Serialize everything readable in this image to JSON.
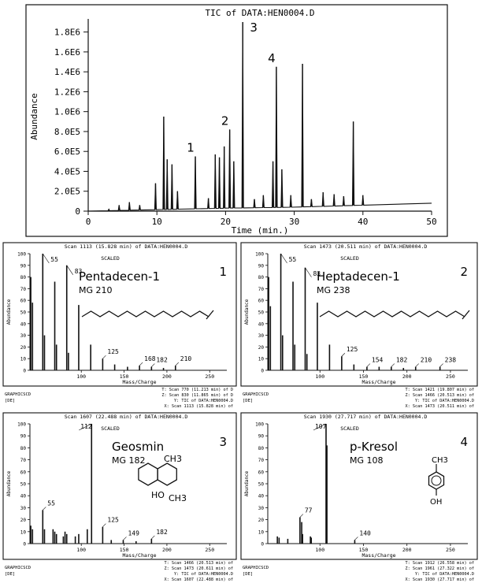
{
  "chart_data": [
    {
      "type": "line",
      "title": "TIC of DATA:HEN0004.D",
      "xlabel": "Time (min.)",
      "ylabel": "Abundance",
      "xlim": [
        0,
        50
      ],
      "ylim": [
        0,
        1900000
      ],
      "x_ticks": [
        "0",
        "10",
        "20",
        "30",
        "40",
        "50"
      ],
      "y_ticks": [
        "0",
        "2.0E5",
        "4.0E5",
        "6.0E5",
        "8.0E5",
        "1.0E6",
        "1.2E6",
        "1.4E6",
        "1.6E6",
        "1.8E6"
      ],
      "y_tick_values": [
        0,
        200000,
        400000,
        600000,
        800000,
        1000000,
        1200000,
        1400000,
        1600000,
        1800000
      ],
      "peaks": {
        "x": [
          3.0,
          4.5,
          6.0,
          7.5,
          9.8,
          11.0,
          11.5,
          12.2,
          13.0,
          15.6,
          17.5,
          18.5,
          19.1,
          19.8,
          20.6,
          21.2,
          22.5,
          24.2,
          25.5,
          26.9,
          27.4,
          28.2,
          29.5,
          31.2,
          32.5,
          34.2,
          35.8,
          37.2,
          38.6,
          40.0
        ],
        "y": [
          20000,
          60000,
          90000,
          60000,
          280000,
          950000,
          520000,
          470000,
          200000,
          550000,
          130000,
          570000,
          540000,
          650000,
          820000,
          500000,
          1900000,
          120000,
          160000,
          500000,
          1450000,
          420000,
          160000,
          1480000,
          120000,
          190000,
          170000,
          150000,
          900000,
          160000
        ]
      },
      "baseline": {
        "x": [
          0,
          10,
          20,
          30,
          40,
          50
        ],
        "y": [
          0,
          15000,
          30000,
          40000,
          60000,
          80000
        ]
      },
      "peak_labels": [
        {
          "text": "1",
          "x": 15.6
        },
        {
          "text": "2",
          "x": 20.6
        },
        {
          "text": "3",
          "x": 22.5
        },
        {
          "text": "4",
          "x": 27.4
        }
      ],
      "grid": false
    },
    {
      "type": "bar",
      "header": "Scan 1113 (15.828 min) of DATA:HEN0004.D",
      "scaled": "SCALED",
      "ylabel": "Abundance",
      "xlabel": "Mass/Charge",
      "x_ticks": [
        "100",
        "150",
        "200",
        "250"
      ],
      "xlim": [
        40,
        270
      ],
      "ylim": [
        0,
        100
      ],
      "compound": "Pentadecen-1",
      "mg": "MG 210",
      "number": "1",
      "x": [
        41,
        43,
        55,
        57,
        69,
        71,
        83,
        85,
        97,
        111,
        125,
        139,
        154,
        168,
        182,
        196,
        210
      ],
      "values": [
        80,
        58,
        100,
        30,
        76,
        22,
        90,
        15,
        56,
        22,
        10,
        5,
        3,
        4,
        3,
        2,
        4
      ],
      "labels": [
        {
          "text": "55",
          "mz": 55
        },
        {
          "text": "83",
          "mz": 83
        },
        {
          "text": "125",
          "mz": 125
        },
        {
          "text": "168",
          "mz": 168
        },
        {
          "text": "182",
          "mz": 182
        },
        {
          "text": "210",
          "mz": 210
        }
      ],
      "footer_left": [
        "GRAPHICSCD",
        "[DE]"
      ],
      "footer_right": [
        "T: Scan 770 (11.213 min) of D",
        "Z: Scan 830 (11.865 min) of D",
        "Y: TIC of DATA:HEN0004.D",
        "X: Scan 1113 (15.828 min) of"
      ]
    },
    {
      "type": "bar",
      "header": "Scan 1473 (20.511 min) of DATA:HEN0004.D",
      "scaled": "SCALED",
      "ylabel": "Abundance",
      "xlabel": "Mass/Charge",
      "x_ticks": [
        "100",
        "150",
        "200",
        "250"
      ],
      "xlim": [
        40,
        270
      ],
      "ylim": [
        0,
        100
      ],
      "compound": "Heptadecen-1",
      "mg": "MG 238",
      "number": "2",
      "x": [
        41,
        43,
        55,
        57,
        69,
        71,
        83,
        85,
        97,
        111,
        125,
        139,
        154,
        168,
        182,
        196,
        210,
        238
      ],
      "values": [
        80,
        55,
        100,
        30,
        76,
        22,
        88,
        14,
        58,
        22,
        12,
        5,
        3,
        3,
        3,
        2,
        3,
        3
      ],
      "labels": [
        {
          "text": "55",
          "mz": 55
        },
        {
          "text": "83",
          "mz": 83
        },
        {
          "text": "125",
          "mz": 125
        },
        {
          "text": "154",
          "mz": 154
        },
        {
          "text": "182",
          "mz": 182
        },
        {
          "text": "210",
          "mz": 210
        },
        {
          "text": "238",
          "mz": 238
        }
      ],
      "footer_left": [
        "GRAPHICSCD",
        "[DE]"
      ],
      "footer_right": [
        "T: Scan 1421 (19.807 min) of",
        "Z: Scan 1466 (20.513 min) of",
        "Y: TIC of DATA:HEN0004.D",
        "X: Scan 1473 (20.511 min) of"
      ]
    },
    {
      "type": "bar",
      "header": "Scan 1607 (22.488 min) of DATA:HEN0004.D",
      "scaled": "SCALED",
      "ylabel": "Abundance",
      "xlabel": "Mass/Charge",
      "x_ticks": [
        "100",
        "150",
        "200",
        "250"
      ],
      "xlim": [
        40,
        270
      ],
      "ylim": [
        0,
        100
      ],
      "compound": "Geosmin",
      "mg": "MG 182",
      "number": "3",
      "x": [
        41,
        43,
        55,
        57,
        67,
        69,
        71,
        79,
        81,
        83,
        93,
        97,
        107,
        112,
        125,
        135,
        149,
        164,
        182
      ],
      "values": [
        15,
        12,
        28,
        12,
        12,
        10,
        8,
        6,
        10,
        8,
        6,
        8,
        12,
        100,
        14,
        3,
        3,
        2,
        4
      ],
      "labels": [
        {
          "text": "112",
          "mz": 112
        },
        {
          "text": "55",
          "mz": 55
        },
        {
          "text": "125",
          "mz": 125
        },
        {
          "text": "149",
          "mz": 149
        },
        {
          "text": "182",
          "mz": 182
        }
      ],
      "footer_left": [
        "GRAPHICSCD",
        "[DE]"
      ],
      "footer_right": [
        "T: Scan 1466 (20.513 min) of",
        "Z: Scan 1473 (20.611 min) of",
        "Y: TIC of DATA:HEN0004.D",
        "X: Scan 1607 (22.488 min) of"
      ]
    },
    {
      "type": "bar",
      "header": "Scan 1930 (27.717 min) of DATA:HEN0004.D",
      "scaled": "SCALED",
      "ylabel": "Abundance",
      "xlabel": "Mass/Charge",
      "x_ticks": [
        "100",
        "150",
        "200",
        "250"
      ],
      "xlim": [
        40,
        270
      ],
      "ylim": [
        0,
        100
      ],
      "compound": "p-Kresol",
      "mg": "MG 108",
      "number": "4",
      "x": [
        51,
        53,
        63,
        77,
        79,
        80,
        89,
        90,
        107,
        108,
        140
      ],
      "values": [
        6,
        5,
        4,
        22,
        18,
        8,
        6,
        5,
        100,
        82,
        3
      ],
      "labels": [
        {
          "text": "107",
          "mz": 107
        },
        {
          "text": "77",
          "mz": 77
        },
        {
          "text": "140",
          "mz": 140
        }
      ],
      "footer_left": [
        "GRAPHICSCD",
        "[DE]"
      ],
      "footer_right": [
        "T: Scan 1912 (26.558 min) of",
        "Z: Scan 1961 (27.322 min) of",
        "Y: TIC of DATA:HEN0004.D",
        "X: Scan 1930 (27.717 min) of"
      ]
    }
  ],
  "y_tick_labels_ms": [
    "0",
    "10",
    "20",
    "30",
    "40",
    "50",
    "60",
    "70",
    "80",
    "90",
    "100"
  ],
  "molecule_labels": {
    "geosmin_ch3_top": "CH3",
    "geosmin_ho": "HO",
    "geosmin_ch3_bottom": "CH3",
    "kresol_ch3": "CH3",
    "kresol_oh": "OH"
  }
}
